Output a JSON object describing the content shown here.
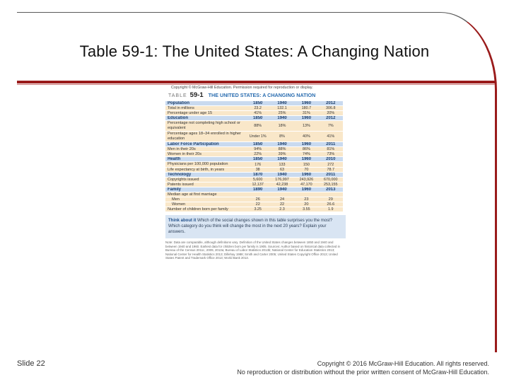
{
  "slide": {
    "title": "Table 59-1: The United States: A Changing Nation",
    "number_label": "Slide 22",
    "footer_line1": "Copyright © 2016 McGraw-Hill Education. All rights reserved.",
    "footer_line2": "No reproduction or distribution without the prior written consent of McGraw-Hill Education.",
    "accent_color": "#9a1b1b"
  },
  "doc": {
    "copyright_note": "Copyright © McGraw-Hill Education. Permission required for reproduction or display.",
    "table_label": "TABLE",
    "table_number": "59-1",
    "table_title": "THE UNITED STATES: A CHANGING NATION",
    "rows": [
      {
        "kind": "hdr",
        "label": "Population",
        "v": [
          "1850",
          "1940",
          "1960",
          "2012"
        ]
      },
      {
        "kind": "row",
        "label": "Total in millions",
        "v": [
          "23.2",
          "132.1",
          "180.7",
          "306.8"
        ]
      },
      {
        "kind": "row",
        "label": "Percentage under age 15",
        "v": [
          "41%",
          "25%",
          "31%",
          "20%"
        ]
      },
      {
        "kind": "hdr",
        "label": "Education",
        "v": [
          "1850",
          "1940",
          "1960",
          "2012"
        ]
      },
      {
        "kind": "row",
        "label": "Percentage not completing high school or equivalent",
        "wrap": true,
        "v": [
          "88%",
          "18%",
          "13%",
          "7%"
        ]
      },
      {
        "kind": "row",
        "label": "Percentage ages 18–34 enrolled in higher education",
        "wrap": true,
        "v": [
          "Under 1%",
          "8%",
          "40%",
          "41%"
        ]
      },
      {
        "kind": "hdr",
        "label": "Labor Force Participation",
        "v": [
          "1850",
          "1940",
          "1960",
          "2011"
        ]
      },
      {
        "kind": "row",
        "label": "Men in their 20s",
        "v": [
          "94%",
          "88%",
          "86%",
          "81%"
        ]
      },
      {
        "kind": "row",
        "label": "Women in their 20s",
        "v": [
          "22%",
          "39%",
          "74%",
          "73%"
        ]
      },
      {
        "kind": "hdr",
        "label": "Health",
        "v": [
          "1850",
          "1940",
          "1960",
          "2010"
        ]
      },
      {
        "kind": "row",
        "label": "Physicians per 100,000 population",
        "wrap": true,
        "v": [
          "176",
          "133",
          "150",
          "272"
        ]
      },
      {
        "kind": "row",
        "label": "Life expectancy at birth, in years",
        "v": [
          "38",
          "63",
          "70",
          "78.7"
        ]
      },
      {
        "kind": "hdr",
        "label": "Technology",
        "v": [
          "1870",
          "1940",
          "1960",
          "2011"
        ]
      },
      {
        "kind": "row",
        "label": "Copyrights issued",
        "v": [
          "5,600",
          "176,997",
          "243,926",
          "670,000"
        ]
      },
      {
        "kind": "row",
        "label": "Patents issued",
        "v": [
          "12,137",
          "42,238",
          "47,170",
          "253,155"
        ]
      },
      {
        "kind": "hdr",
        "label": "Family",
        "v": [
          "1890",
          "1940",
          "1960",
          "2013"
        ]
      },
      {
        "kind": "sub0",
        "label": "Median age at first marriage",
        "v": [
          "",
          "",
          "",
          ""
        ]
      },
      {
        "kind": "sub",
        "label": "Men",
        "v": [
          "26",
          "24",
          "23",
          "29"
        ]
      },
      {
        "kind": "sub",
        "label": "Women",
        "v": [
          "22",
          "22",
          "20",
          "26.6"
        ]
      },
      {
        "kind": "row",
        "label": "Number of children born per family",
        "v": [
          "3.25",
          "2.3",
          "3.55",
          "1.9"
        ]
      }
    ],
    "think_label": "Think about it",
    "think_text": " Which of the social changes shown in this table surprises you the most? Which category do you think will change the most in the next 20 years? Explain your answers.",
    "notes": "Note: Data are comparable, although definitions vary. Definition of the United States changes between 1850 and 1940 and between 1940 and 1960. Earliest data for children born per family is 1905. Sources: Author based on historical data collected in Bureau of the Census 2011c, 2009, 2013a; Bureau of Labor Statistics 2013b; National Center for Education Statistics 2013; National Center for Health Statistics 2013; Dillehay 1988; Smith and Carter 2005; United States Copyright Office 2013; United States Patent and Trademark Office 2013; World Bank 2013."
  }
}
